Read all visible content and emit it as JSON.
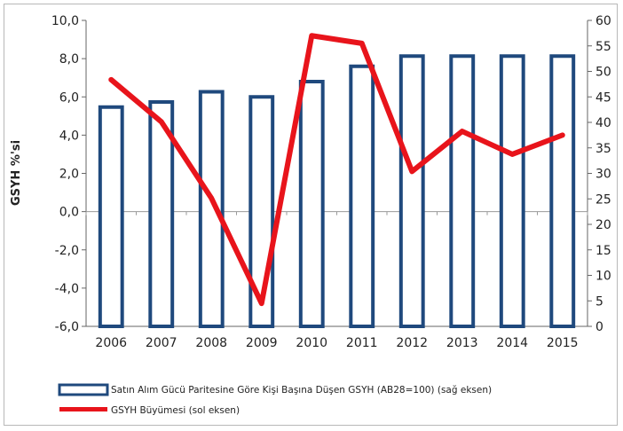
{
  "chart_data": {
    "type": "bar+line",
    "categories": [
      "2006",
      "2007",
      "2008",
      "2009",
      "2010",
      "2011",
      "2012",
      "2013",
      "2014",
      "2015"
    ],
    "series": [
      {
        "name": "Satın Alım Gücü Paritesine Göre Kişi Başına Düşen GSYH (AB28=100) (sağ eksen)",
        "type": "bar",
        "axis": "right",
        "values": [
          43,
          44,
          46,
          45,
          48,
          51,
          53,
          53,
          53,
          53
        ]
      },
      {
        "name": "GSYH Büyümesi (sol eksen)",
        "type": "line",
        "axis": "left",
        "values": [
          6.9,
          4.7,
          0.7,
          -4.8,
          9.2,
          8.8,
          2.1,
          4.2,
          3.0,
          4.0
        ]
      }
    ],
    "ylabel": "GSYH %'si",
    "ylim_left": [
      -6,
      10
    ],
    "ylim_right": [
      0,
      60
    ],
    "left_ticks": [
      "10,0",
      "8,0",
      "6,0",
      "4,0",
      "2,0",
      "0,0",
      "-2,0",
      "-4,0",
      "-6,0"
    ],
    "right_ticks": [
      "60",
      "55",
      "50",
      "45",
      "40",
      "35",
      "30",
      "25",
      "20",
      "15",
      "10",
      "5",
      "0"
    ],
    "legend_position": "bottom",
    "colors": {
      "bar_stroke": "#1f497d",
      "bar_fill": "#ffffff",
      "line": "#e8141b"
    }
  }
}
